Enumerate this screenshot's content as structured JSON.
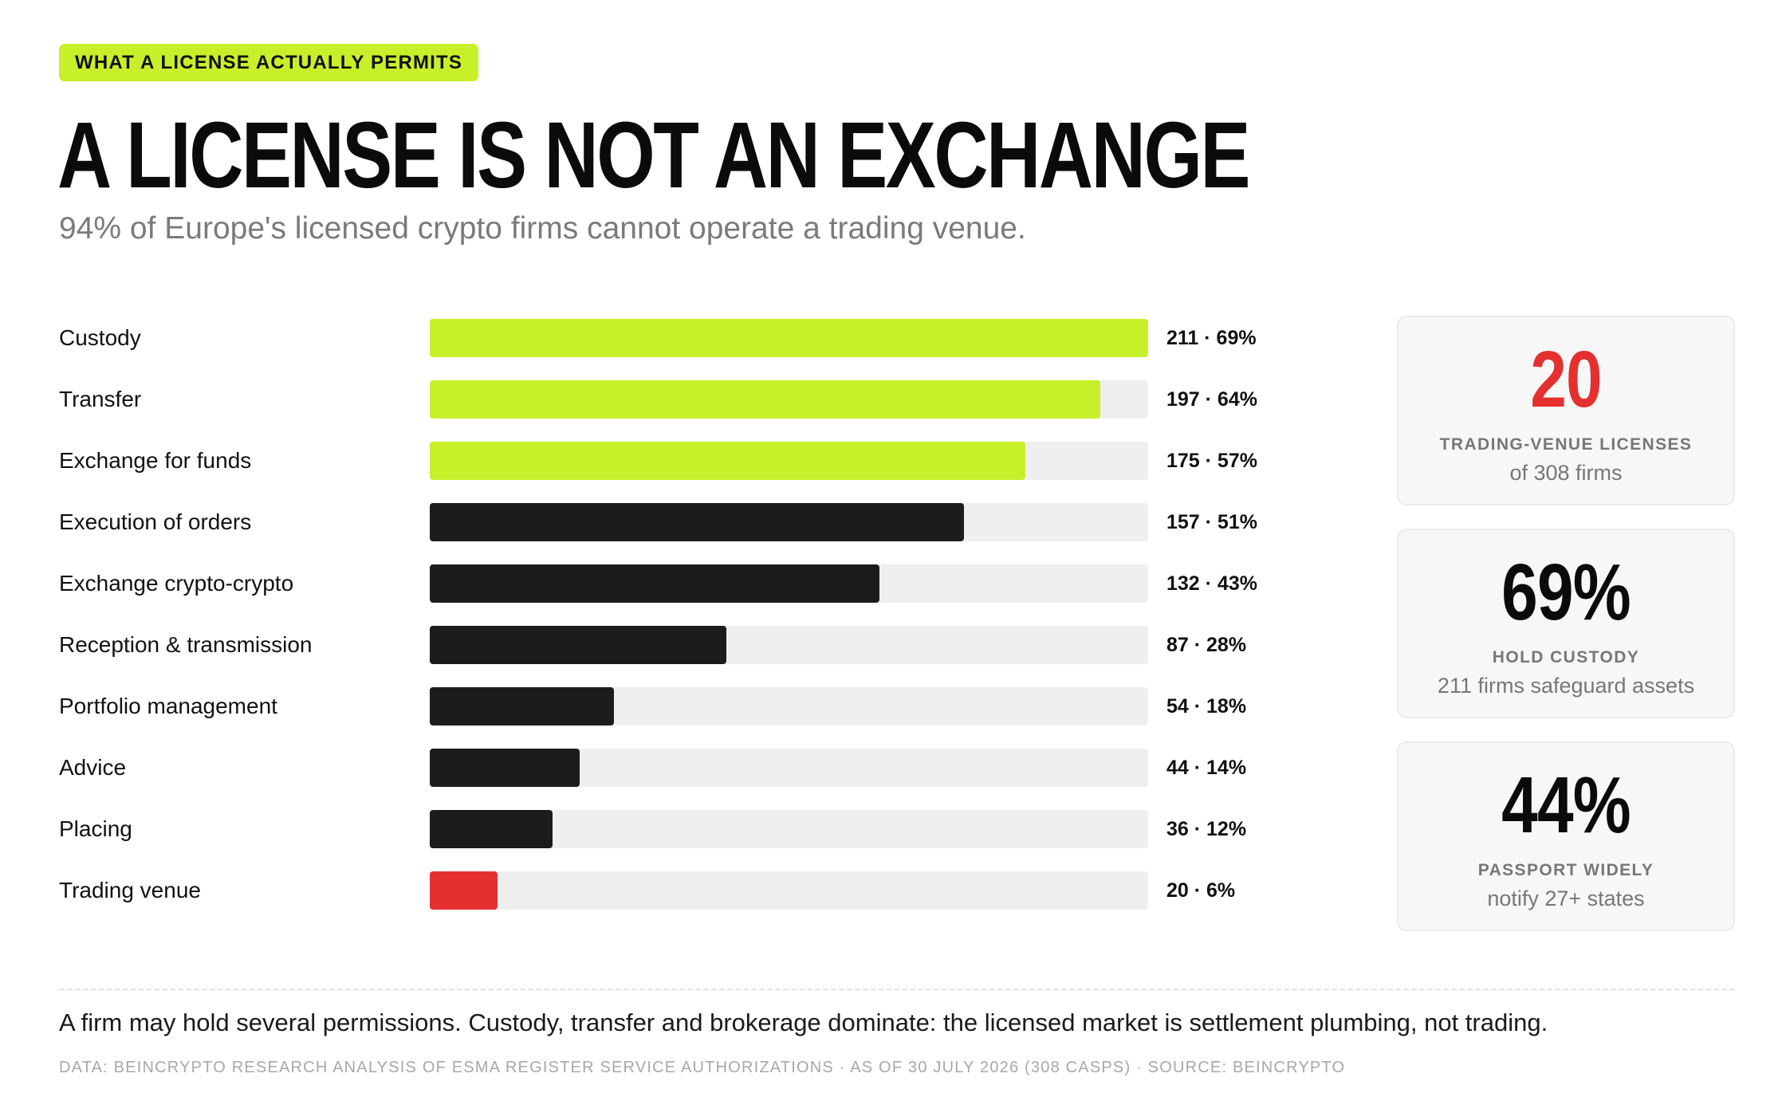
{
  "eyebrow": "WHAT A LICENSE ACTUALLY PERMITS",
  "title": "A LICENSE IS NOT AN EXCHANGE",
  "subtitle": "94% of Europe's licensed crypto firms cannot operate a trading venue.",
  "colors": {
    "accent": "#c8f02a",
    "dark": "#1c1c1c",
    "alert": "#e53030",
    "track": "#efefef"
  },
  "chart_data": {
    "type": "bar",
    "orientation": "horizontal",
    "categories": [
      "Custody",
      "Transfer",
      "Exchange for funds",
      "Execution of orders",
      "Exchange crypto-crypto",
      "Reception & transmission",
      "Portfolio management",
      "Advice",
      "Placing",
      "Trading venue"
    ],
    "values": [
      211,
      197,
      175,
      157,
      132,
      87,
      54,
      44,
      36,
      20
    ],
    "percents": [
      69,
      64,
      57,
      51,
      43,
      28,
      18,
      14,
      12,
      6
    ],
    "value_labels": [
      "211 · 69%",
      "197 · 64%",
      "175 · 57%",
      "157 · 51%",
      "132 · 43%",
      "87 · 28%",
      "54 · 18%",
      "44 · 14%",
      "36 · 12%",
      "20 · 6%"
    ],
    "bar_colors": [
      "#c8f02a",
      "#c8f02a",
      "#c8f02a",
      "#1c1c1c",
      "#1c1c1c",
      "#1c1c1c",
      "#1c1c1c",
      "#1c1c1c",
      "#1c1c1c",
      "#e53030"
    ],
    "xlim": [
      0,
      211
    ],
    "grid": false,
    "title": "",
    "xlabel": "",
    "ylabel": ""
  },
  "stats": [
    {
      "value": "20",
      "value_color": "#e53030",
      "label": "TRADING-VENUE LICENSES",
      "note": "of 308 firms"
    },
    {
      "value": "69%",
      "value_color": "#0b0b0b",
      "label": "HOLD CUSTODY",
      "note": "211 firms safeguard assets"
    },
    {
      "value": "44%",
      "value_color": "#0b0b0b",
      "label": "PASSPORT WIDELY",
      "note": "notify 27+ states"
    }
  ],
  "footnote": "A firm may hold several permissions. Custody, transfer and brokerage dominate: the licensed market is settlement plumbing, not trading.",
  "source": "DATA: BEINCRYPTO RESEARCH ANALYSIS OF ESMA REGISTER SERVICE AUTHORIZATIONS · AS OF 30 JULY 2026 (308 CASPS) · SOURCE: BEINCRYPTO"
}
